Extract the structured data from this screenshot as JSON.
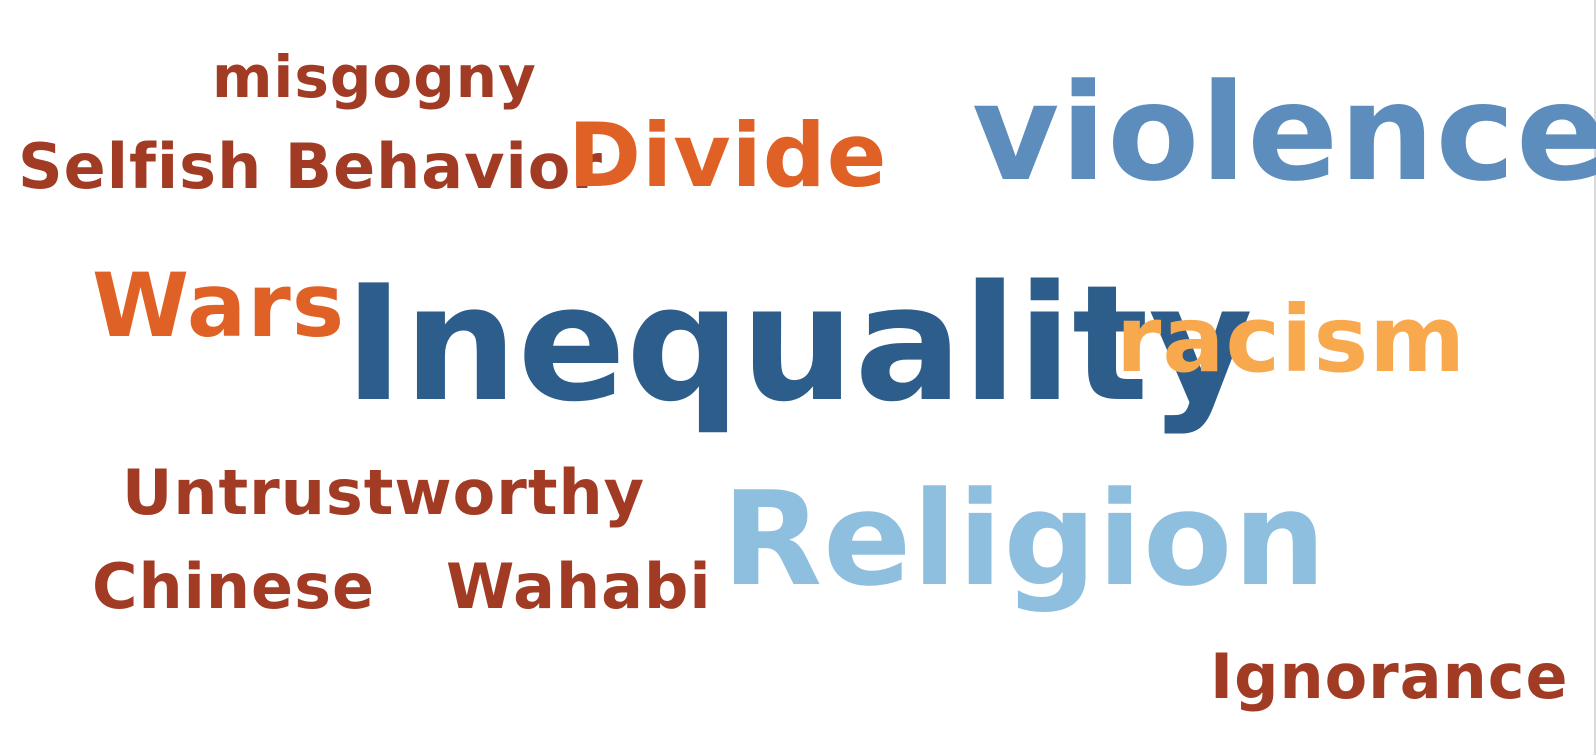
{
  "cloud": {
    "words": [
      {
        "text": "misgogny",
        "color": "#A23B24",
        "cls": "w-misgogny",
        "id": "misgogny"
      },
      {
        "text": "Selfish Behavior",
        "color": "#A23B24",
        "cls": "w-selfish",
        "id": "selfish-behavior"
      },
      {
        "text": "Divide",
        "color": "#E06126",
        "cls": "w-divide",
        "id": "divide"
      },
      {
        "text": "violence",
        "color": "#5C8DBD",
        "cls": "w-violence",
        "id": "violence"
      },
      {
        "text": "Wars",
        "color": "#E06126",
        "cls": "w-wars",
        "id": "wars"
      },
      {
        "text": "Inequality",
        "color": "#2D5D8B",
        "cls": "w-inequality",
        "id": "inequality"
      },
      {
        "text": "racism",
        "color": "#F8A94D",
        "cls": "w-racism",
        "id": "racism"
      },
      {
        "text": "Untrustworthy",
        "color": "#A23B24",
        "cls": "w-untrustworthy",
        "id": "untrustworthy"
      },
      {
        "text": "Religion",
        "color": "#8FBFDF",
        "cls": "w-religion",
        "id": "religion"
      },
      {
        "text": "Chinese",
        "color": "#A23B24",
        "cls": "w-chinese",
        "id": "chinese"
      },
      {
        "text": "Wahabi",
        "color": "#A23B24",
        "cls": "w-wahabi",
        "id": "wahabi"
      },
      {
        "text": "Ignorance",
        "color": "#A23B24",
        "cls": "w-ignorance",
        "id": "ignorance"
      }
    ]
  }
}
